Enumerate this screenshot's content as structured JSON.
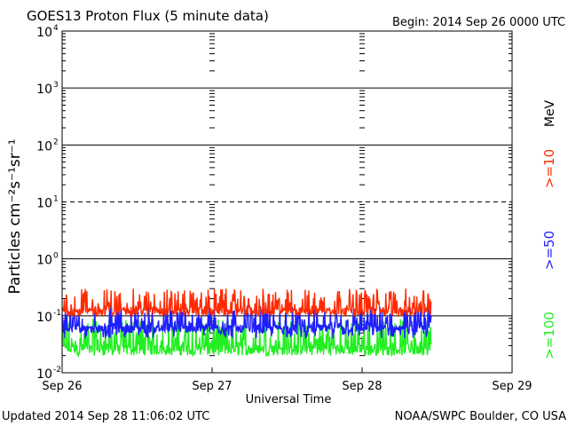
{
  "chart_data": {
    "type": "line",
    "title": "GOES13 Proton Flux (5 minute data)",
    "begin_label": "Begin: 2014 Sep 26 0000 UTC",
    "xlabel": "Universal Time",
    "ylabel": "Particles cm⁻²s⁻¹sr⁻¹",
    "x_ticks": [
      "Sep 26",
      "Sep 27",
      "Sep 28",
      "Sep 29"
    ],
    "xlim": [
      0,
      3
    ],
    "y_scale": "log",
    "ylim": [
      0.01,
      10000
    ],
    "y_ticks": [
      {
        "base": "10",
        "exp": "-2"
      },
      {
        "base": "10",
        "exp": "-1"
      },
      {
        "base": "10",
        "exp": "0"
      },
      {
        "base": "10",
        "exp": "1"
      },
      {
        "base": "10",
        "exp": "2"
      },
      {
        "base": "10",
        "exp": "3"
      },
      {
        "base": "10",
        "exp": "4"
      }
    ],
    "energy_unit": "MeV",
    "series": [
      {
        "name": ">=10",
        "color": "#ff2a00",
        "x_end": 2.46,
        "baseline": 0.1,
        "typical_range": [
          0.1,
          0.3
        ]
      },
      {
        "name": ">=50",
        "color": "#1e1eff",
        "x_end": 2.46,
        "baseline": 0.05,
        "typical_range": [
          0.04,
          0.15
        ]
      },
      {
        "name": ">=100",
        "color": "#22ee22",
        "x_end": 2.46,
        "baseline": 0.02,
        "typical_range": [
          0.02,
          0.09
        ]
      }
    ]
  },
  "footer": {
    "updated": "Updated 2014 Sep 28 11:06:02 UTC",
    "credit": "NOAA/SWPC Boulder, CO USA"
  }
}
